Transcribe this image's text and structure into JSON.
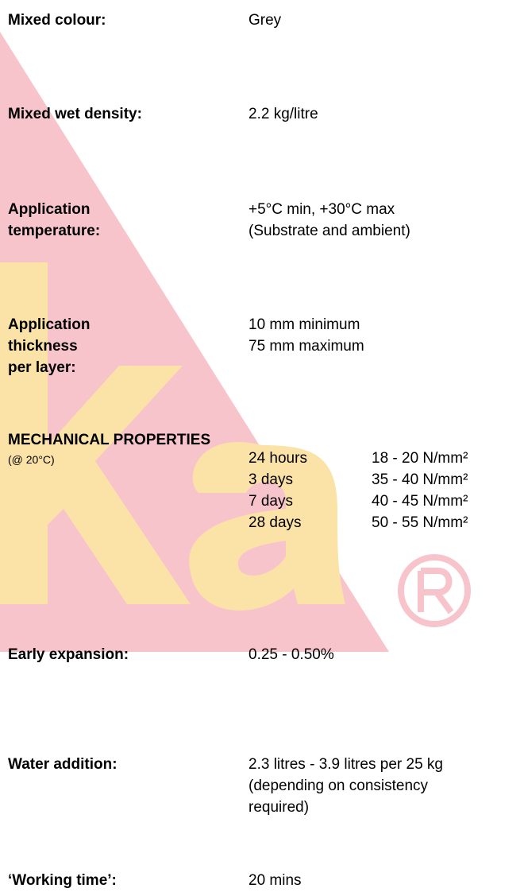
{
  "properties": [
    {
      "label": [
        "Mixed colour:"
      ],
      "value": [
        "Grey"
      ]
    },
    {
      "label": [
        "Mixed wet density:"
      ],
      "value": [
        "2.2 kg/litre"
      ]
    },
    {
      "label": [
        "Application",
        "temperature:"
      ],
      "value": [
        "+5°C min, +30°C max",
        "(Substrate and ambient)"
      ]
    },
    {
      "label": [
        "Application",
        "thickness",
        "per layer:"
      ],
      "value": [
        "10 mm minimum",
        "75 mm maximum"
      ]
    }
  ],
  "mechanical": {
    "title": "MECHANICAL PROPERTIES",
    "note": "(@ 20°C)",
    "rows": [
      [
        "24 hours",
        "18 - 20 N/mm²"
      ],
      [
        "3 days",
        "35 - 40 N/mm²"
      ],
      [
        "7 days",
        "40 - 45 N/mm²"
      ],
      [
        "28 days",
        "50 - 55 N/mm²"
      ]
    ]
  },
  "more": [
    {
      "label": [
        "Early expansion:"
      ],
      "value": [
        "0.25 - 0.50%"
      ]
    },
    {
      "label": [
        "Water addition:"
      ],
      "value": [
        "2.3 litres - 3.9 litres per 25 kg",
        "(depending on consistency",
        "required)"
      ]
    },
    {
      "label": [
        "‘Working time’:"
      ],
      "value": [
        "20 mins"
      ]
    }
  ]
}
